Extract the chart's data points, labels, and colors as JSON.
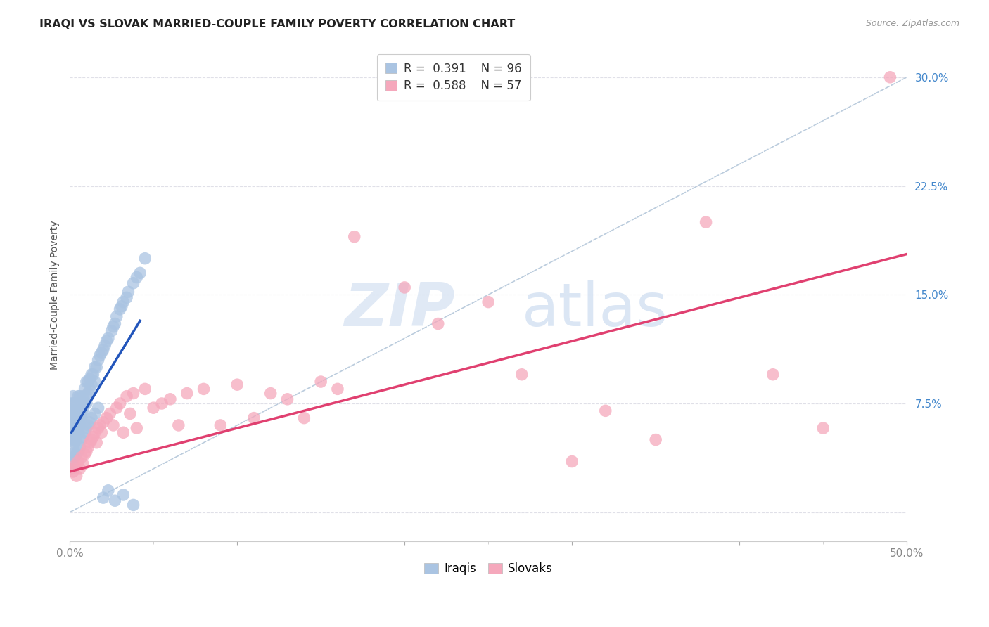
{
  "title": "IRAQI VS SLOVAK MARRIED-COUPLE FAMILY POVERTY CORRELATION CHART",
  "source": "Source: ZipAtlas.com",
  "ylabel": "Married-Couple Family Poverty",
  "xlim": [
    0,
    0.5
  ],
  "ylim": [
    -0.02,
    0.32
  ],
  "xticks": [
    0.0,
    0.1,
    0.2,
    0.3,
    0.4,
    0.5
  ],
  "xticklabels": [
    "0.0%",
    "",
    "",
    "",
    "",
    "50.0%"
  ],
  "ytick_positions": [
    0.0,
    0.075,
    0.15,
    0.225,
    0.3
  ],
  "ytick_labels": [
    "",
    "7.5%",
    "15.0%",
    "22.5%",
    "30.0%"
  ],
  "iraqi_color": "#aac4e2",
  "slovak_color": "#f5a8bc",
  "iraqi_line_color": "#2255bb",
  "slovak_line_color": "#e04070",
  "diagonal_color": "#bbccdd",
  "R_iraqi": 0.391,
  "N_iraqi": 96,
  "R_slovak": 0.588,
  "N_slovak": 57,
  "legend_iraqi_label": "Iraqis",
  "legend_slovak_label": "Slovaks",
  "watermark_zip": "ZIP",
  "watermark_atlas": "atlas",
  "background_color": "#ffffff",
  "grid_color": "#e0e0e8",
  "iraqi_x": [
    0.001,
    0.001,
    0.001,
    0.001,
    0.001,
    0.002,
    0.002,
    0.002,
    0.002,
    0.002,
    0.002,
    0.002,
    0.003,
    0.003,
    0.003,
    0.003,
    0.003,
    0.003,
    0.004,
    0.004,
    0.004,
    0.004,
    0.005,
    0.005,
    0.005,
    0.005,
    0.005,
    0.006,
    0.006,
    0.006,
    0.006,
    0.007,
    0.007,
    0.007,
    0.008,
    0.008,
    0.008,
    0.009,
    0.009,
    0.01,
    0.01,
    0.01,
    0.011,
    0.011,
    0.012,
    0.012,
    0.013,
    0.013,
    0.014,
    0.015,
    0.015,
    0.016,
    0.017,
    0.018,
    0.019,
    0.02,
    0.021,
    0.022,
    0.023,
    0.025,
    0.026,
    0.027,
    0.028,
    0.03,
    0.031,
    0.032,
    0.034,
    0.035,
    0.038,
    0.04,
    0.042,
    0.001,
    0.001,
    0.002,
    0.002,
    0.003,
    0.003,
    0.004,
    0.004,
    0.005,
    0.006,
    0.007,
    0.008,
    0.009,
    0.01,
    0.011,
    0.012,
    0.013,
    0.015,
    0.017,
    0.02,
    0.023,
    0.027,
    0.032,
    0.038,
    0.045
  ],
  "iraqi_y": [
    0.055,
    0.06,
    0.065,
    0.07,
    0.075,
    0.05,
    0.055,
    0.06,
    0.065,
    0.07,
    0.075,
    0.08,
    0.05,
    0.055,
    0.06,
    0.065,
    0.07,
    0.075,
    0.055,
    0.06,
    0.065,
    0.07,
    0.055,
    0.06,
    0.065,
    0.07,
    0.08,
    0.06,
    0.065,
    0.07,
    0.08,
    0.065,
    0.07,
    0.075,
    0.068,
    0.072,
    0.08,
    0.075,
    0.085,
    0.075,
    0.08,
    0.09,
    0.082,
    0.09,
    0.085,
    0.092,
    0.088,
    0.095,
    0.095,
    0.09,
    0.1,
    0.1,
    0.105,
    0.108,
    0.11,
    0.112,
    0.115,
    0.118,
    0.12,
    0.125,
    0.128,
    0.13,
    0.135,
    0.14,
    0.142,
    0.145,
    0.148,
    0.152,
    0.158,
    0.162,
    0.165,
    0.03,
    0.04,
    0.035,
    0.045,
    0.038,
    0.048,
    0.04,
    0.05,
    0.042,
    0.045,
    0.05,
    0.052,
    0.055,
    0.058,
    0.06,
    0.062,
    0.065,
    0.068,
    0.072,
    0.01,
    0.015,
    0.008,
    0.012,
    0.005,
    0.175
  ],
  "slovak_x": [
    0.001,
    0.002,
    0.003,
    0.004,
    0.005,
    0.006,
    0.007,
    0.008,
    0.009,
    0.01,
    0.011,
    0.012,
    0.013,
    0.014,
    0.015,
    0.016,
    0.017,
    0.018,
    0.019,
    0.02,
    0.022,
    0.024,
    0.026,
    0.028,
    0.03,
    0.032,
    0.034,
    0.036,
    0.038,
    0.04,
    0.045,
    0.05,
    0.055,
    0.06,
    0.065,
    0.07,
    0.08,
    0.09,
    0.1,
    0.11,
    0.12,
    0.13,
    0.14,
    0.15,
    0.16,
    0.17,
    0.2,
    0.22,
    0.25,
    0.27,
    0.3,
    0.32,
    0.35,
    0.38,
    0.42,
    0.45,
    0.49
  ],
  "slovak_y": [
    0.03,
    0.028,
    0.032,
    0.025,
    0.035,
    0.03,
    0.038,
    0.033,
    0.04,
    0.042,
    0.045,
    0.048,
    0.05,
    0.052,
    0.055,
    0.048,
    0.058,
    0.06,
    0.055,
    0.062,
    0.065,
    0.068,
    0.06,
    0.072,
    0.075,
    0.055,
    0.08,
    0.068,
    0.082,
    0.058,
    0.085,
    0.072,
    0.075,
    0.078,
    0.06,
    0.082,
    0.085,
    0.06,
    0.088,
    0.065,
    0.082,
    0.078,
    0.065,
    0.09,
    0.085,
    0.19,
    0.155,
    0.13,
    0.145,
    0.095,
    0.035,
    0.07,
    0.05,
    0.2,
    0.095,
    0.058,
    0.3
  ],
  "iraqi_line_x": [
    0.001,
    0.042
  ],
  "iraqi_line_y": [
    0.055,
    0.132
  ],
  "slovak_line_x": [
    0.0,
    0.5
  ],
  "slovak_line_y": [
    0.028,
    0.178
  ]
}
